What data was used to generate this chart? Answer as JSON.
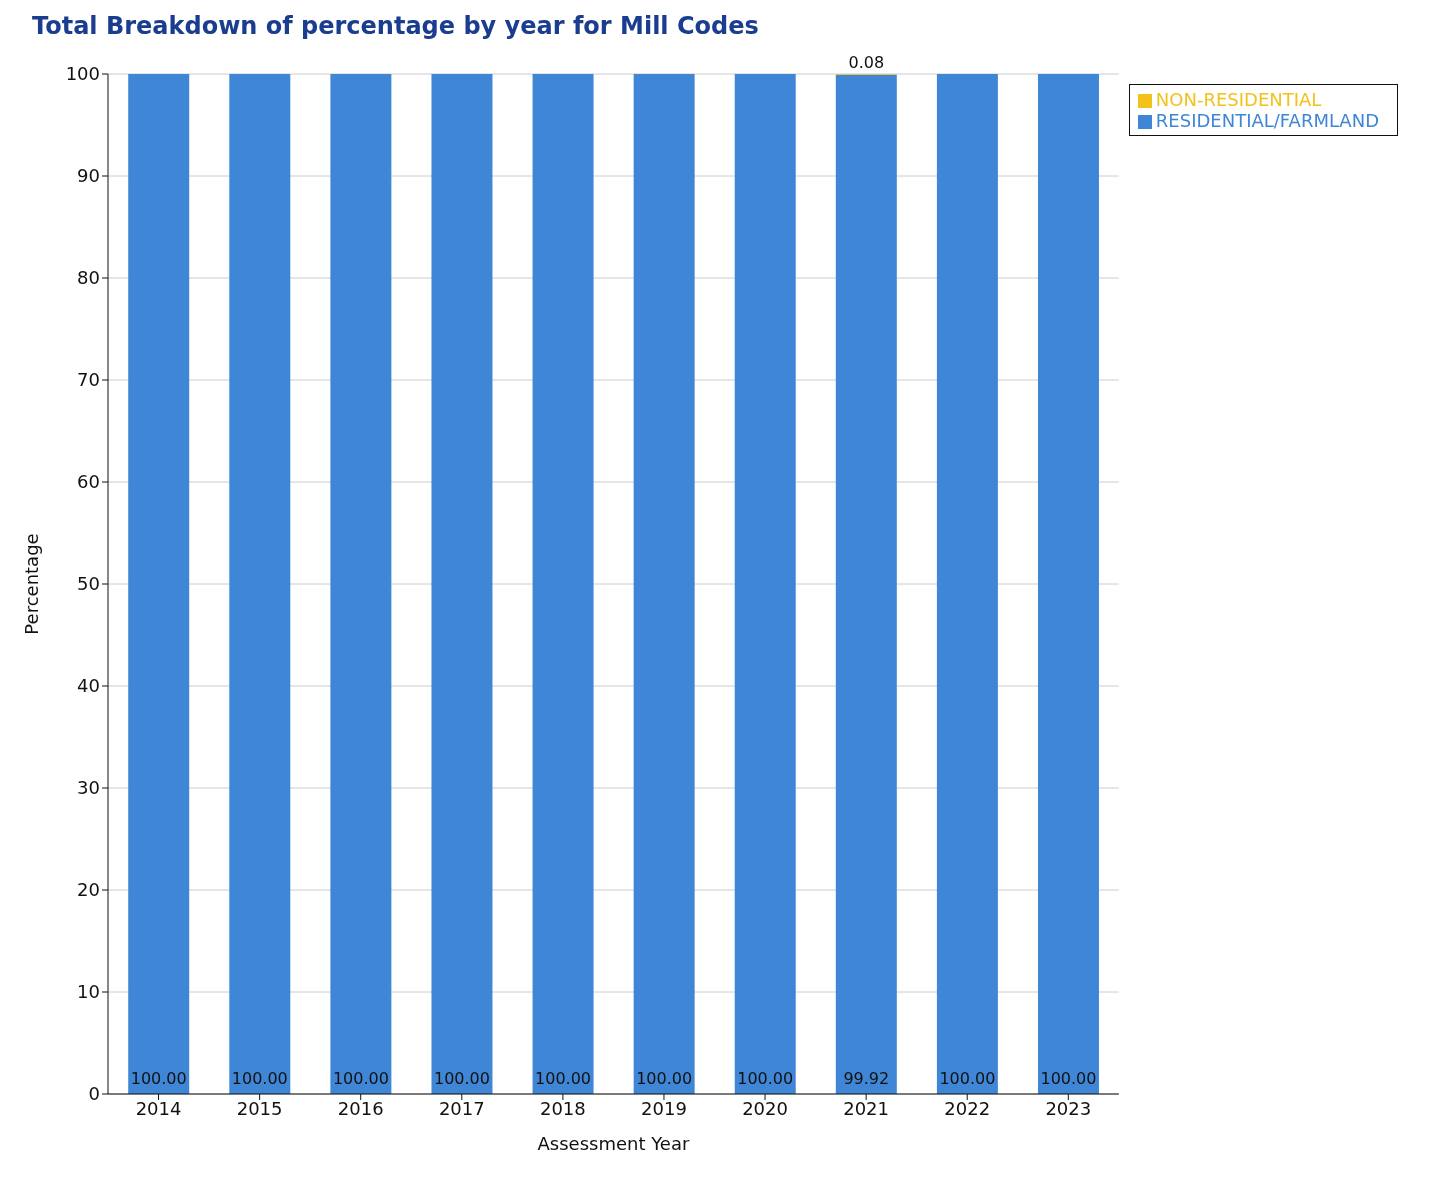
{
  "chart_data": {
    "type": "bar",
    "title": "Total Breakdown of percentage by year for Mill Codes",
    "xlabel": "Assessment Year",
    "ylabel": "Percentage",
    "categories": [
      "2014",
      "2015",
      "2016",
      "2017",
      "2018",
      "2019",
      "2020",
      "2021",
      "2022",
      "2023"
    ],
    "series": [
      {
        "name": "RESIDENTIAL/FARMLAND",
        "color": "#3f87d6",
        "values": [
          100,
          100,
          100,
          100,
          100,
          100,
          100,
          99.92,
          100,
          100
        ],
        "value_labels": [
          "100.00",
          "100.00",
          "100.00",
          "100.00",
          "100.00",
          "100.00",
          "100.00",
          "99.92",
          "100.00",
          "100.00"
        ]
      },
      {
        "name": "NON-RESIDENTIAL",
        "color": "#f2c21b",
        "values": [
          null,
          null,
          null,
          null,
          null,
          null,
          null,
          0.08,
          null,
          null
        ],
        "value_labels": [
          null,
          null,
          null,
          null,
          null,
          null,
          null,
          "0.08",
          null,
          null
        ]
      }
    ],
    "stacked": true,
    "ylim": [
      0,
      100
    ],
    "yticks": [
      0,
      10,
      20,
      30,
      40,
      50,
      60,
      70,
      80,
      90,
      100
    ],
    "grid": "y",
    "legend": "top right"
  }
}
